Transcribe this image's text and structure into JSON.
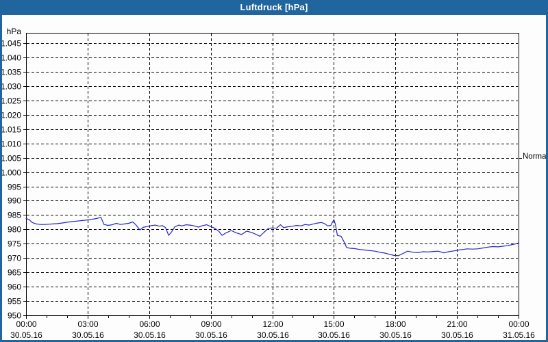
{
  "window": {
    "title": "Luftdruck [hPa]"
  },
  "colors": {
    "titlebar": "#20659e",
    "border": "#20659e",
    "plot_background": "#fdfdfd",
    "line": "#2222cc",
    "grid": "#000000",
    "text": "#000000"
  },
  "normal_marker": {
    "label": "Normal",
    "value": 1005
  },
  "chart_data": {
    "type": "line",
    "title": "Luftdruck [hPa]",
    "ylabel": "hPa",
    "xlabel": "",
    "grid": "dashed",
    "legend_position": "none",
    "ylim": [
      950,
      1048.6
    ],
    "xlim_hours": [
      0,
      24
    ],
    "minor_xtick_every_hours": 1,
    "yticks": [
      {
        "value": 950,
        "label": "950"
      },
      {
        "value": 955,
        "label": "955"
      },
      {
        "value": 960,
        "label": "960"
      },
      {
        "value": 965,
        "label": "965"
      },
      {
        "value": 970,
        "label": "970"
      },
      {
        "value": 975,
        "label": "975"
      },
      {
        "value": 980,
        "label": "980"
      },
      {
        "value": 985,
        "label": "985"
      },
      {
        "value": 990,
        "label": "990"
      },
      {
        "value": 995,
        "label": "995"
      },
      {
        "value": 1000,
        "label": "1.000"
      },
      {
        "value": 1005,
        "label": "1.005"
      },
      {
        "value": 1010,
        "label": "1.010"
      },
      {
        "value": 1015,
        "label": "1.015"
      },
      {
        "value": 1020,
        "label": "1.020"
      },
      {
        "value": 1025,
        "label": "1.025"
      },
      {
        "value": 1030,
        "label": "1.030"
      },
      {
        "value": 1035,
        "label": "1.035"
      },
      {
        "value": 1040,
        "label": "1.040"
      },
      {
        "value": 1045,
        "label": "1.045"
      }
    ],
    "xticks": [
      {
        "hours": 0,
        "time": "00:00",
        "date": "30.05.16"
      },
      {
        "hours": 3,
        "time": "03:00",
        "date": "30.05.16"
      },
      {
        "hours": 6,
        "time": "06:00",
        "date": "30.05.16"
      },
      {
        "hours": 9,
        "time": "09:00",
        "date": "30.05.16"
      },
      {
        "hours": 12,
        "time": "12:00",
        "date": "30.05.16"
      },
      {
        "hours": 15,
        "time": "15:00",
        "date": "30.05.16"
      },
      {
        "hours": 18,
        "time": "18:00",
        "date": "30.05.16"
      },
      {
        "hours": 21,
        "time": "21:00",
        "date": "30.05.16"
      },
      {
        "hours": 24,
        "time": "00:00",
        "date": "31.05.16"
      }
    ],
    "series": [
      {
        "name": "Luftdruck",
        "unit": "hPa",
        "color": "#2222cc",
        "points": [
          [
            0.0,
            983.8
          ],
          [
            0.15,
            983.4
          ],
          [
            0.3,
            982.4
          ],
          [
            0.5,
            981.9
          ],
          [
            0.7,
            981.7
          ],
          [
            0.9,
            981.7
          ],
          [
            1.1,
            981.8
          ],
          [
            1.3,
            981.9
          ],
          [
            1.5,
            982.0
          ],
          [
            1.75,
            982.2
          ],
          [
            2.0,
            982.5
          ],
          [
            2.25,
            982.7
          ],
          [
            2.5,
            982.9
          ],
          [
            2.75,
            983.1
          ],
          [
            3.0,
            983.3
          ],
          [
            3.2,
            983.5
          ],
          [
            3.45,
            983.8
          ],
          [
            3.65,
            984.2
          ],
          [
            3.8,
            981.7
          ],
          [
            4.0,
            981.4
          ],
          [
            4.2,
            981.6
          ],
          [
            4.4,
            982.1
          ],
          [
            4.6,
            981.7
          ],
          [
            4.8,
            981.9
          ],
          [
            5.0,
            982.1
          ],
          [
            5.2,
            982.6
          ],
          [
            5.35,
            981.6
          ],
          [
            5.55,
            979.8
          ],
          [
            5.7,
            980.7
          ],
          [
            5.9,
            981.0
          ],
          [
            6.1,
            981.3
          ],
          [
            6.3,
            981.5
          ],
          [
            6.5,
            981.1
          ],
          [
            6.65,
            981.3
          ],
          [
            6.8,
            980.6
          ],
          [
            6.95,
            977.9
          ],
          [
            7.1,
            979.2
          ],
          [
            7.25,
            980.9
          ],
          [
            7.45,
            981.5
          ],
          [
            7.6,
            981.2
          ],
          [
            7.8,
            981.6
          ],
          [
            8.0,
            981.5
          ],
          [
            8.2,
            981.2
          ],
          [
            8.4,
            980.8
          ],
          [
            8.6,
            981.3
          ],
          [
            8.8,
            981.6
          ],
          [
            9.0,
            981.0
          ],
          [
            9.2,
            980.4
          ],
          [
            9.4,
            979.3
          ],
          [
            9.55,
            977.9
          ],
          [
            9.75,
            978.8
          ],
          [
            10.0,
            979.6
          ],
          [
            10.2,
            978.9
          ],
          [
            10.5,
            978.2
          ],
          [
            10.75,
            979.4
          ],
          [
            11.0,
            978.9
          ],
          [
            11.2,
            978.3
          ],
          [
            11.4,
            977.6
          ],
          [
            11.6,
            979.0
          ],
          [
            11.8,
            980.3
          ],
          [
            12.0,
            980.5
          ],
          [
            12.2,
            980.4
          ],
          [
            12.4,
            981.6
          ],
          [
            12.55,
            980.6
          ],
          [
            12.75,
            980.9
          ],
          [
            13.0,
            981.1
          ],
          [
            13.2,
            981.4
          ],
          [
            13.4,
            981.2
          ],
          [
            13.6,
            981.7
          ],
          [
            13.8,
            981.5
          ],
          [
            14.0,
            981.9
          ],
          [
            14.2,
            982.2
          ],
          [
            14.4,
            982.4
          ],
          [
            14.55,
            982.0
          ],
          [
            14.7,
            981.2
          ],
          [
            14.85,
            981.4
          ],
          [
            15.0,
            983.4
          ],
          [
            15.08,
            981.6
          ],
          [
            15.17,
            977.9
          ],
          [
            15.35,
            977.6
          ],
          [
            15.5,
            975.6
          ],
          [
            15.62,
            973.7
          ],
          [
            15.8,
            973.4
          ],
          [
            16.0,
            973.3
          ],
          [
            16.25,
            973.0
          ],
          [
            16.5,
            972.8
          ],
          [
            16.75,
            972.6
          ],
          [
            17.0,
            972.4
          ],
          [
            17.25,
            972.0
          ],
          [
            17.5,
            971.7
          ],
          [
            17.75,
            971.2
          ],
          [
            17.95,
            970.9
          ],
          [
            18.15,
            970.8
          ],
          [
            18.35,
            971.5
          ],
          [
            18.6,
            972.4
          ],
          [
            18.85,
            972.0
          ],
          [
            19.1,
            971.9
          ],
          [
            19.35,
            972.2
          ],
          [
            19.6,
            972.1
          ],
          [
            19.85,
            972.3
          ],
          [
            20.1,
            972.4
          ],
          [
            20.35,
            971.8
          ],
          [
            20.6,
            972.2
          ],
          [
            20.85,
            972.5
          ],
          [
            21.1,
            972.8
          ],
          [
            21.3,
            973.0
          ],
          [
            21.5,
            973.2
          ],
          [
            21.75,
            973.1
          ],
          [
            22.0,
            973.2
          ],
          [
            22.25,
            973.5
          ],
          [
            22.5,
            973.8
          ],
          [
            22.75,
            974.0
          ],
          [
            23.0,
            973.9
          ],
          [
            23.2,
            974.1
          ],
          [
            23.45,
            974.3
          ],
          [
            23.7,
            974.7
          ],
          [
            23.9,
            975.0
          ],
          [
            24.0,
            975.3
          ]
        ]
      }
    ]
  }
}
